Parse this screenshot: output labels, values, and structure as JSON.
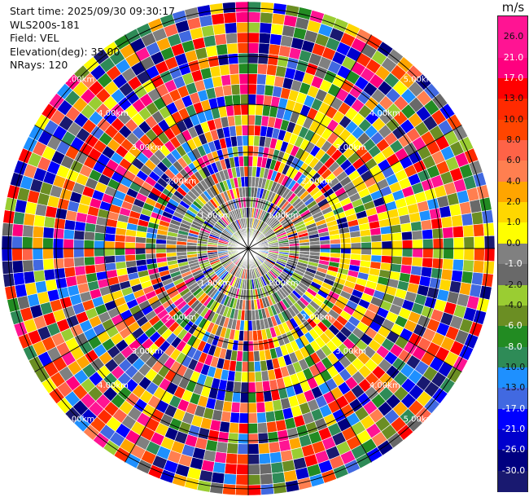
{
  "info": {
    "start_time": "Start time: 2025/09/30 09:30:17",
    "instrument": "WLS200s-181",
    "field": "Field: VEL",
    "elevation": "Elevation(deg): 35.00",
    "nrays": "NRays: 120"
  },
  "colorbar": {
    "unit": "m/s",
    "bins": [
      {
        "label": "26.0",
        "color": "#ff1493"
      },
      {
        "label": "21.0",
        "color": "#ff007f"
      },
      {
        "label": "17.0",
        "color": "#ff0000"
      },
      {
        "label": "13.0",
        "color": "#ff2a00"
      },
      {
        "label": "10.0",
        "color": "#ff4500"
      },
      {
        "label": "8.0",
        "color": "#ff6347"
      },
      {
        "label": "6.0",
        "color": "#ff7f50"
      },
      {
        "label": "4.0",
        "color": "#ffa500"
      },
      {
        "label": "2.0",
        "color": "#ffd700"
      },
      {
        "label": "1.0",
        "color": "#ffff00"
      },
      {
        "label": "0.0",
        "color": "#808080"
      },
      {
        "label": "-1.0",
        "color": "#696969"
      },
      {
        "label": "-2.0",
        "color": "#9acd32"
      },
      {
        "label": "-4.0",
        "color": "#6b8e23"
      },
      {
        "label": "-6.0",
        "color": "#228b22"
      },
      {
        "label": "-8.0",
        "color": "#2e8b57"
      },
      {
        "label": "-10.0",
        "color": "#1e90ff"
      },
      {
        "label": "-13.0",
        "color": "#4169e1"
      },
      {
        "label": "-17.0",
        "color": "#0000ff"
      },
      {
        "label": "-21.0",
        "color": "#0000cd"
      },
      {
        "label": "-26.0",
        "color": "#000080"
      },
      {
        "label": "-30.0",
        "color": "#191970"
      }
    ],
    "top_color": "#ff1493"
  },
  "range_labels": [
    "1.00km",
    "2.00km",
    "3.00km",
    "4.00km",
    "5.00km"
  ]
}
